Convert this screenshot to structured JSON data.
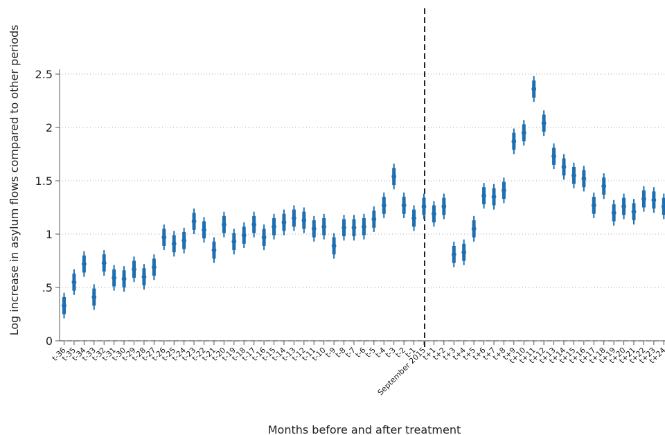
{
  "chart_data": {
    "type": "scatter",
    "xlabel": "Months before and after treatment",
    "ylabel": "Log increase in asylum flows compared to other periods",
    "ylim": [
      0,
      2.5
    ],
    "yticks": [
      0,
      0.5,
      1,
      1.5,
      2,
      2.5
    ],
    "ytick_labels": [
      "0",
      ".5",
      "1",
      "1.5",
      "2",
      "2.5"
    ],
    "grid": "horizontal dotted",
    "treatment_marker": "dashed vertical line at September 2015",
    "series_color": "#1f6fb0",
    "categories": [
      "t-36",
      "t-35",
      "t-34",
      "t-33",
      "t-32",
      "t-31",
      "t-30",
      "t-29",
      "t-28",
      "t-27",
      "t-26",
      "t-25",
      "t-24",
      "t-23",
      "t-22",
      "t-21",
      "t-20",
      "t-19",
      "t-18",
      "t-17",
      "t-16",
      "t-15",
      "t-14",
      "t-13",
      "t-12",
      "t-11",
      "t-10",
      "t-9",
      "t-8",
      "t-7",
      "t-6",
      "t-5",
      "t-4",
      "t-3",
      "t-2",
      "t-1",
      "September 2015",
      "t+1",
      "t+2",
      "t+3",
      "t+4",
      "t+5",
      "t+6",
      "t+7",
      "t+8",
      "t+9",
      "t+10",
      "t+11",
      "t+12",
      "t+13",
      "t+14",
      "t+15",
      "t+16",
      "t+17",
      "t+18",
      "t+19",
      "t+20",
      "t+21",
      "t+22",
      "t+23",
      "t+24"
    ],
    "values": [
      0.33,
      0.55,
      0.72,
      0.41,
      0.73,
      0.59,
      0.58,
      0.67,
      0.6,
      0.69,
      0.97,
      0.91,
      0.94,
      1.12,
      1.04,
      0.85,
      1.09,
      0.93,
      0.99,
      1.09,
      0.97,
      1.07,
      1.11,
      1.15,
      1.13,
      1.05,
      1.07,
      0.89,
      1.06,
      1.06,
      1.07,
      1.14,
      1.27,
      1.54,
      1.27,
      1.15,
      1.26,
      1.19,
      1.26,
      0.81,
      0.83,
      1.05,
      1.36,
      1.35,
      1.41,
      1.87,
      1.95,
      2.36,
      2.04,
      1.73,
      1.63,
      1.55,
      1.52,
      1.27,
      1.45,
      1.2,
      1.26,
      1.21,
      1.33,
      1.32,
      1.26
    ],
    "ci95_halfwidth": 0.12,
    "ci90_halfwidth": 0.08
  }
}
